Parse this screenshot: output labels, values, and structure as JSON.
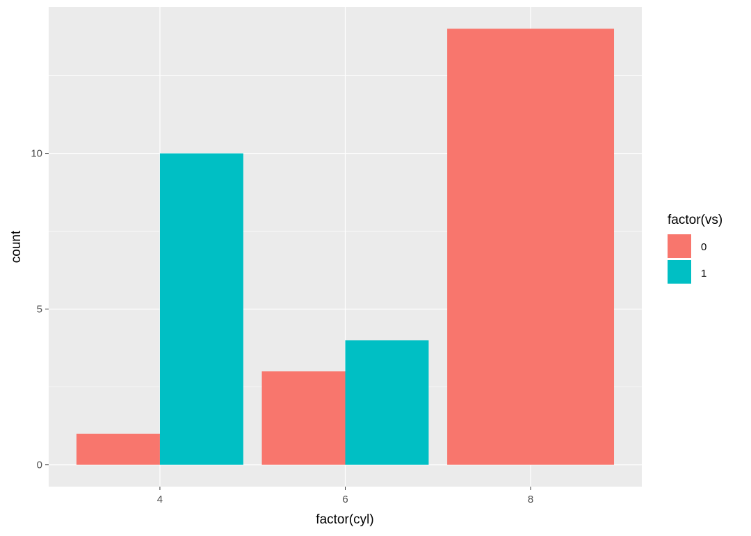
{
  "chart_data": {
    "type": "bar",
    "title": "",
    "xlabel": "factor(cyl)",
    "ylabel": "count",
    "categories": [
      "4",
      "6",
      "8"
    ],
    "series": [
      {
        "name": "0",
        "values": [
          1,
          3,
          14
        ],
        "color": "#F8766D"
      },
      {
        "name": "1",
        "values": [
          10,
          4,
          0
        ],
        "color": "#00BFC4"
      }
    ],
    "ylim": [
      -0.7,
      14.7
    ],
    "yticks": [
      0,
      5,
      10
    ],
    "yticks_labels": [
      "0",
      "5",
      "10"
    ],
    "grid": true,
    "legend": {
      "title": "factor(vs)",
      "placement": "right",
      "labels": [
        "0",
        "1"
      ]
    },
    "panel_background": "#EBEBEB",
    "grid_color": "#FFFFFF"
  }
}
